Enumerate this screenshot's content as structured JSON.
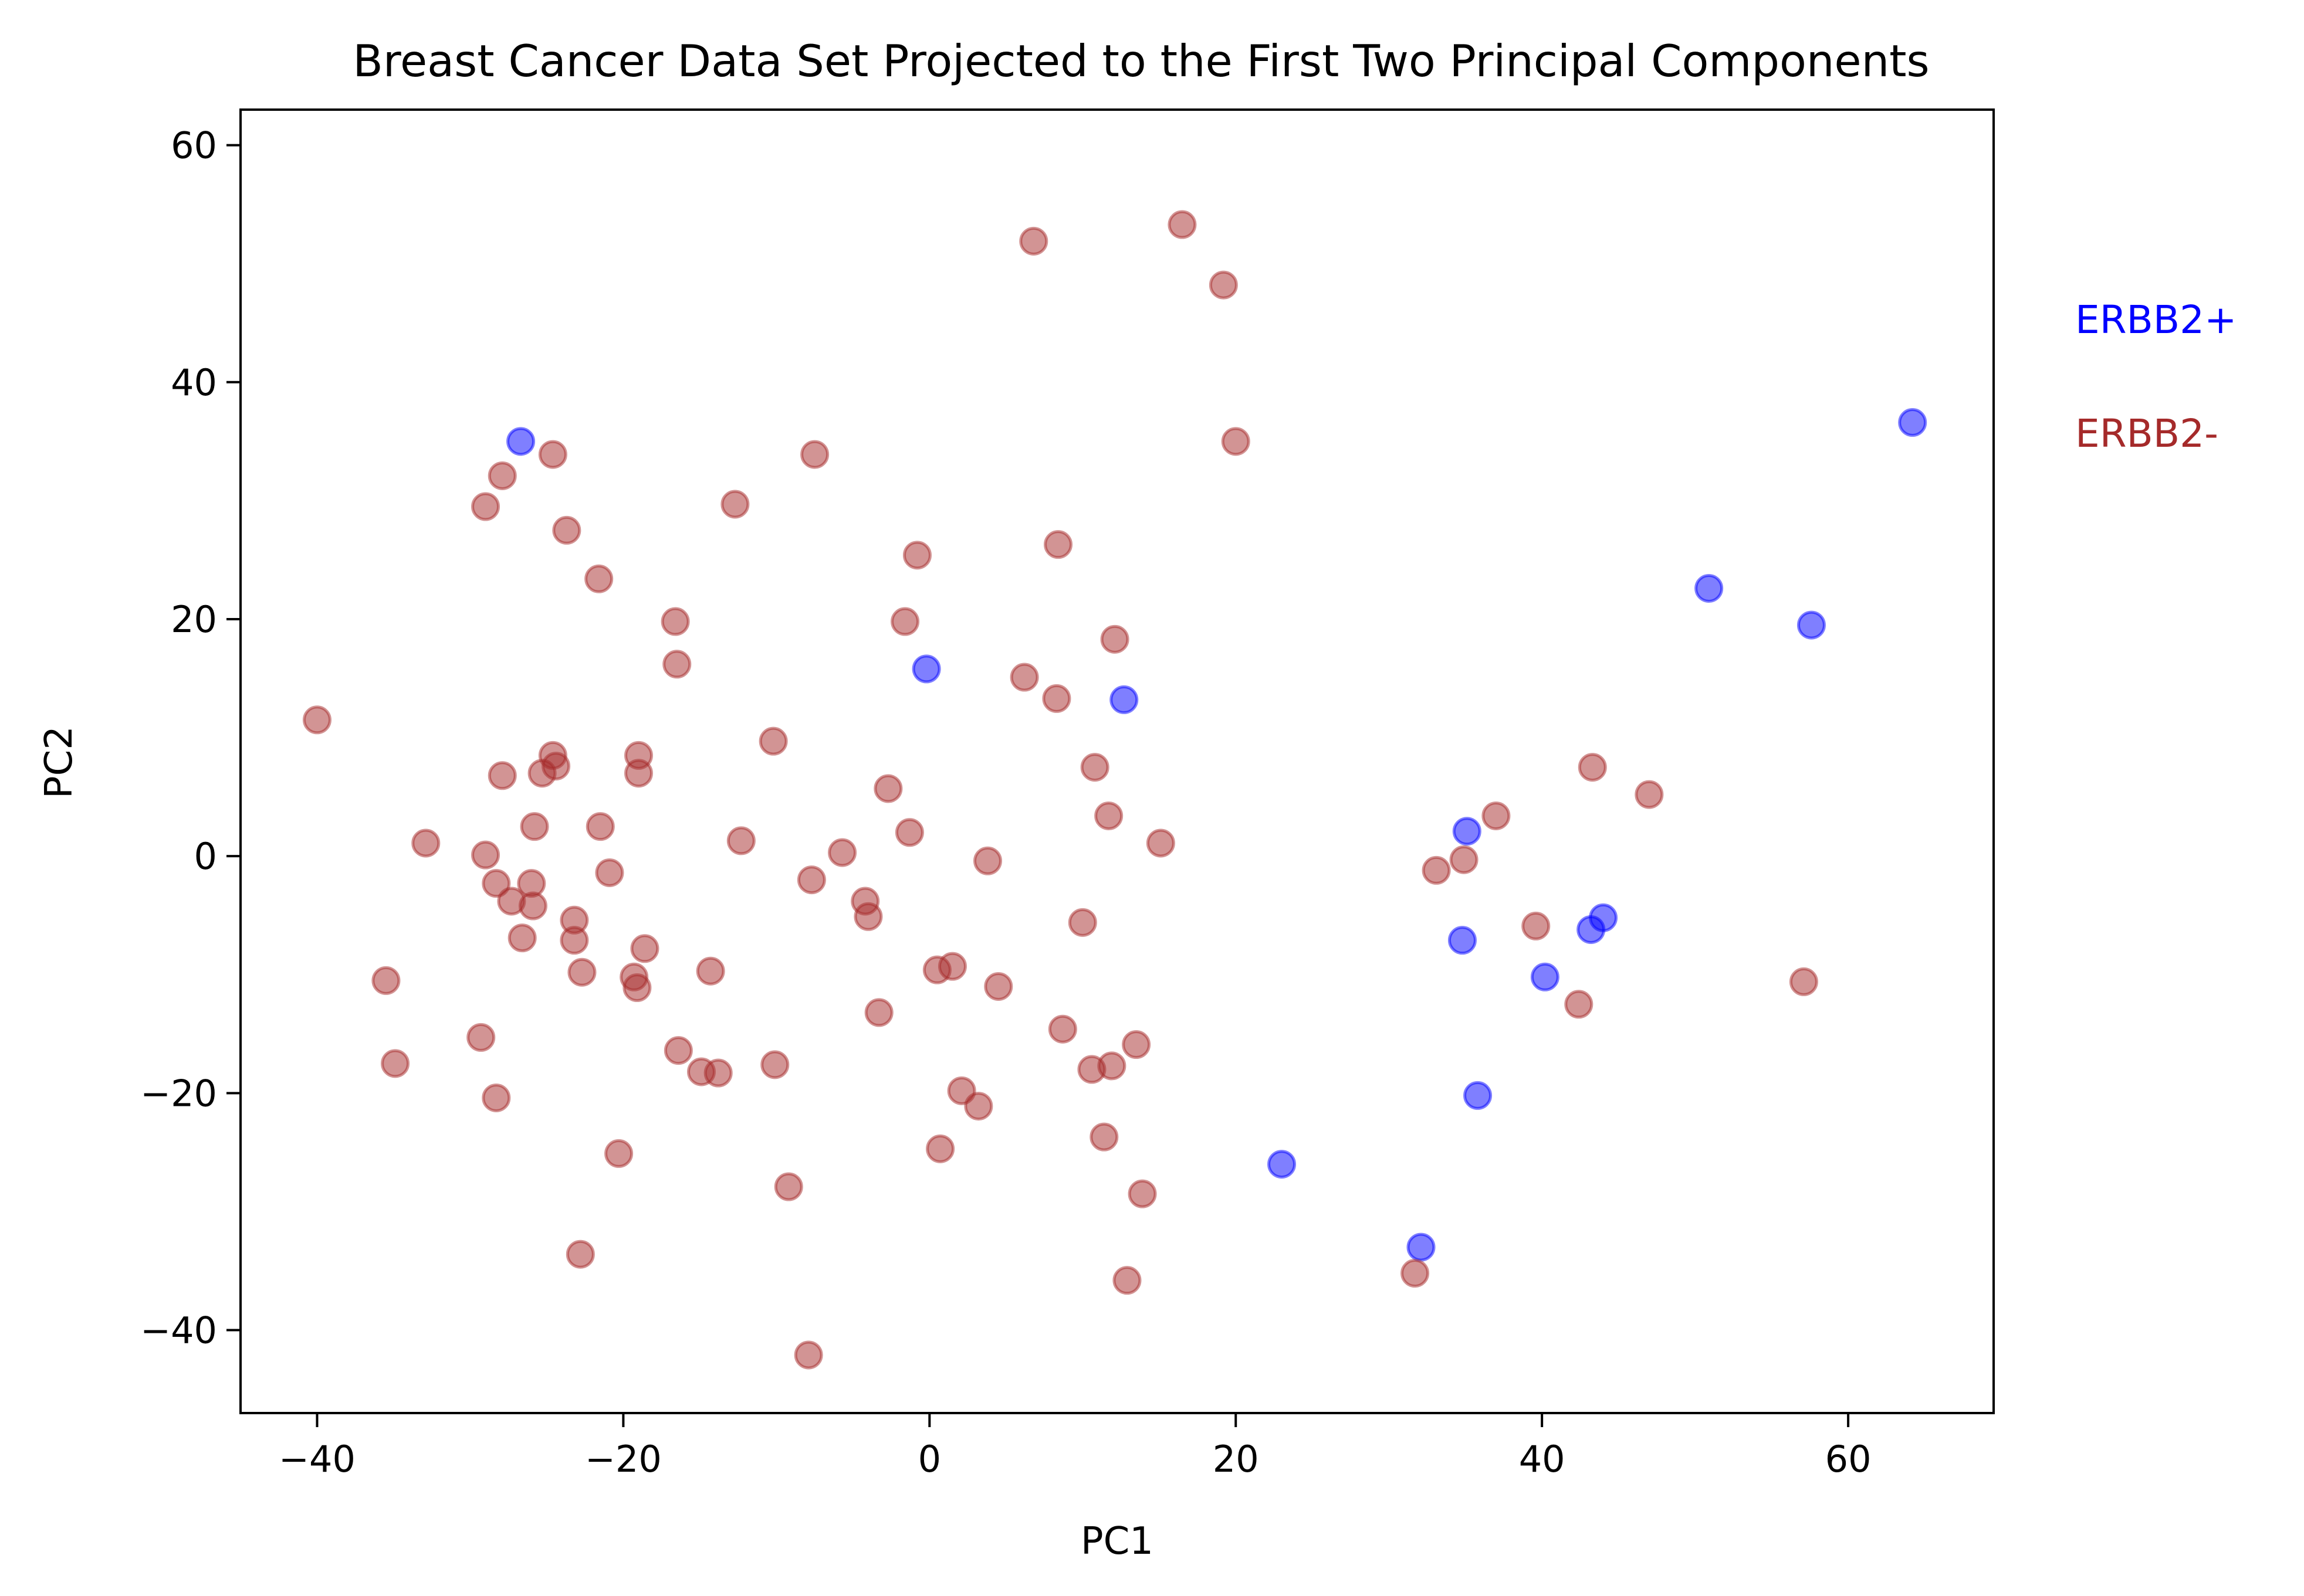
{
  "chart_data": {
    "type": "scatter",
    "title": "Breast Cancer Data Set Projected to the First Two Principal Components",
    "xlabel": "PC1",
    "ylabel": "PC2",
    "xlim": [
      -45,
      69.5
    ],
    "ylim": [
      -47,
      63
    ],
    "xticks": [
      -40,
      -20,
      0,
      20,
      40,
      60
    ],
    "yticks": [
      -40,
      -20,
      0,
      20,
      40,
      60
    ],
    "grid": false,
    "legend_position": "right, outside plot area",
    "series": [
      {
        "name": "ERBB2+",
        "color": "#0000ff",
        "points": [
          [
            -26.7,
            35.0
          ],
          [
            -0.2,
            15.8
          ],
          [
            12.7,
            13.2
          ],
          [
            64.2,
            36.6
          ],
          [
            50.9,
            22.6
          ],
          [
            57.6,
            19.5
          ],
          [
            35.1,
            2.1
          ],
          [
            34.8,
            -7.1
          ],
          [
            43.2,
            -6.2
          ],
          [
            44.0,
            -5.2
          ],
          [
            40.2,
            -10.2
          ],
          [
            35.8,
            -20.2
          ],
          [
            23.0,
            -26.0
          ],
          [
            32.1,
            -33.0
          ]
        ]
      },
      {
        "name": "ERBB2-",
        "color": "#a52a2a",
        "points": [
          [
            6.8,
            51.9
          ],
          [
            16.5,
            53.3
          ],
          [
            19.2,
            48.2
          ],
          [
            20.0,
            35.0
          ],
          [
            -7.5,
            33.9
          ],
          [
            -24.6,
            33.9
          ],
          [
            -27.9,
            32.1
          ],
          [
            -29.0,
            29.5
          ],
          [
            -23.7,
            27.5
          ],
          [
            -12.7,
            29.7
          ],
          [
            -21.6,
            23.4
          ],
          [
            -0.8,
            25.4
          ],
          [
            8.4,
            26.3
          ],
          [
            -1.6,
            19.8
          ],
          [
            -16.6,
            19.8
          ],
          [
            -16.5,
            16.2
          ],
          [
            6.2,
            15.1
          ],
          [
            12.1,
            18.3
          ],
          [
            8.3,
            13.3
          ],
          [
            -40.0,
            11.5
          ],
          [
            -10.2,
            9.7
          ],
          [
            -24.6,
            8.5
          ],
          [
            -19.0,
            8.5
          ],
          [
            -24.4,
            7.6
          ],
          [
            -19.0,
            7.0
          ],
          [
            -27.9,
            6.8
          ],
          [
            -25.3,
            7.0
          ],
          [
            -2.7,
            5.7
          ],
          [
            10.8,
            7.5
          ],
          [
            11.7,
            3.4
          ],
          [
            -25.8,
            2.5
          ],
          [
            -21.5,
            2.5
          ],
          [
            -1.3,
            2.0
          ],
          [
            15.1,
            1.1
          ],
          [
            -32.9,
            1.1
          ],
          [
            -12.3,
            1.3
          ],
          [
            -5.7,
            0.3
          ],
          [
            -20.9,
            -1.4
          ],
          [
            -29.0,
            0.1
          ],
          [
            3.8,
            -0.4
          ],
          [
            -26.0,
            -2.3
          ],
          [
            -28.3,
            -2.3
          ],
          [
            -7.7,
            -2.0
          ],
          [
            -4.2,
            -3.8
          ],
          [
            -27.3,
            -3.8
          ],
          [
            -25.9,
            -4.2
          ],
          [
            -4.0,
            -5.1
          ],
          [
            -23.2,
            -5.4
          ],
          [
            -23.2,
            -7.1
          ],
          [
            -26.6,
            -6.9
          ],
          [
            -18.6,
            -7.8
          ],
          [
            10.0,
            -5.6
          ],
          [
            -22.7,
            -9.8
          ],
          [
            -19.3,
            -10.2
          ],
          [
            -19.1,
            -11.1
          ],
          [
            -14.3,
            -9.7
          ],
          [
            0.5,
            -9.6
          ],
          [
            1.5,
            -9.3
          ],
          [
            4.5,
            -11.0
          ],
          [
            -35.5,
            -10.5
          ],
          [
            -3.3,
            -13.2
          ],
          [
            8.7,
            -14.6
          ],
          [
            -16.4,
            -16.4
          ],
          [
            -14.9,
            -18.2
          ],
          [
            -13.8,
            -18.3
          ],
          [
            -10.1,
            -17.6
          ],
          [
            -34.9,
            -17.5
          ],
          [
            -29.3,
            -15.3
          ],
          [
            13.5,
            -15.9
          ],
          [
            10.6,
            -18.0
          ],
          [
            11.9,
            -17.7
          ],
          [
            2.1,
            -19.8
          ],
          [
            3.2,
            -21.1
          ],
          [
            -28.3,
            -20.4
          ],
          [
            0.7,
            -24.7
          ],
          [
            11.4,
            -23.7
          ],
          [
            -20.3,
            -25.1
          ],
          [
            -9.2,
            -27.9
          ],
          [
            13.9,
            -28.5
          ],
          [
            -22.8,
            -33.6
          ],
          [
            12.9,
            -35.8
          ],
          [
            -7.9,
            -42.1
          ],
          [
            31.7,
            -35.2
          ],
          [
            33.1,
            -1.2
          ],
          [
            34.9,
            -0.3
          ],
          [
            37.0,
            3.4
          ],
          [
            43.3,
            7.5
          ],
          [
            47.0,
            5.2
          ],
          [
            39.6,
            -5.9
          ],
          [
            42.4,
            -12.5
          ],
          [
            57.1,
            -10.6
          ]
        ]
      }
    ]
  }
}
